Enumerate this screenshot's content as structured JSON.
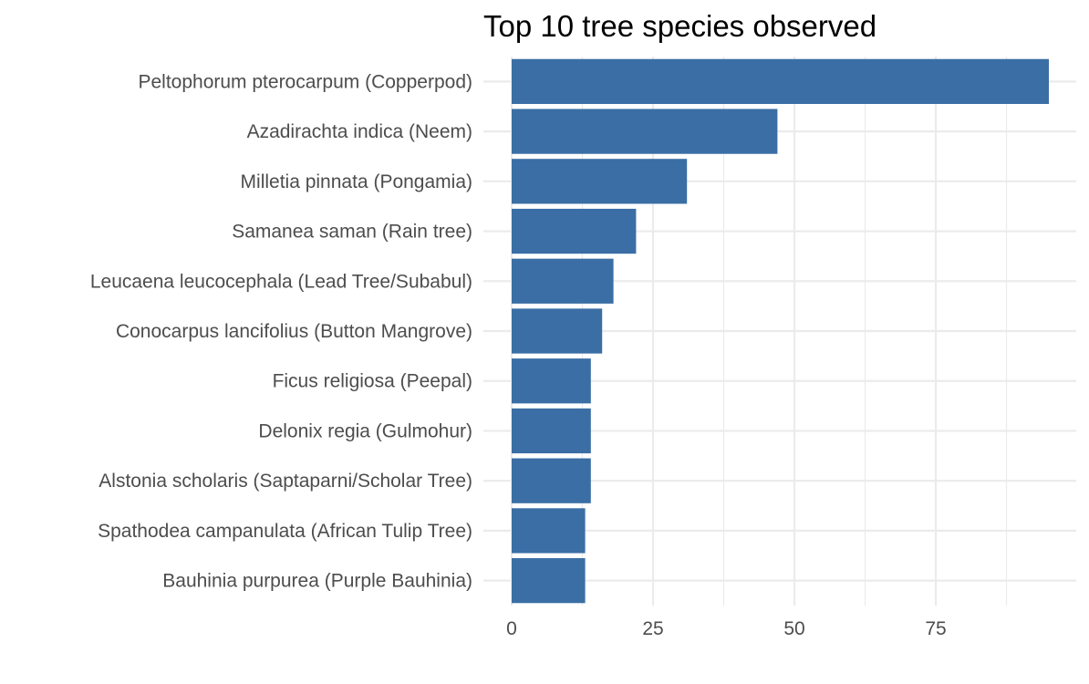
{
  "chart_data": {
    "type": "bar",
    "orientation": "horizontal",
    "title": "Top 10 tree species observed",
    "xlabel": "",
    "ylabel": "",
    "categories": [
      "Peltophorum pterocarpum (Copperpod)",
      "Azadirachta indica (Neem)",
      "Milletia pinnata (Pongamia)",
      "Samanea saman (Rain tree)",
      "Leucaena leucocephala (Lead Tree/Subabul)",
      "Conocarpus lancifolius (Button Mangrove)",
      "Ficus religiosa (Peepal)",
      "Delonix regia (Gulmohur)",
      "Alstonia scholaris (Saptaparni/Scholar Tree)",
      "Spathodea campanulata (African Tulip Tree)",
      "Bauhinia purpurea (Purple Bauhinia)"
    ],
    "values": [
      95,
      47,
      31,
      22,
      18,
      16,
      14,
      14,
      14,
      13,
      13
    ],
    "xlim": [
      0,
      95
    ],
    "xticks": [
      0,
      25,
      50,
      75
    ],
    "xtick_labels": [
      "0",
      "25",
      "50",
      "75"
    ],
    "grid": true,
    "legend": "none",
    "bar_color": "#3a6ea5",
    "grid_color": "#ebebeb"
  }
}
